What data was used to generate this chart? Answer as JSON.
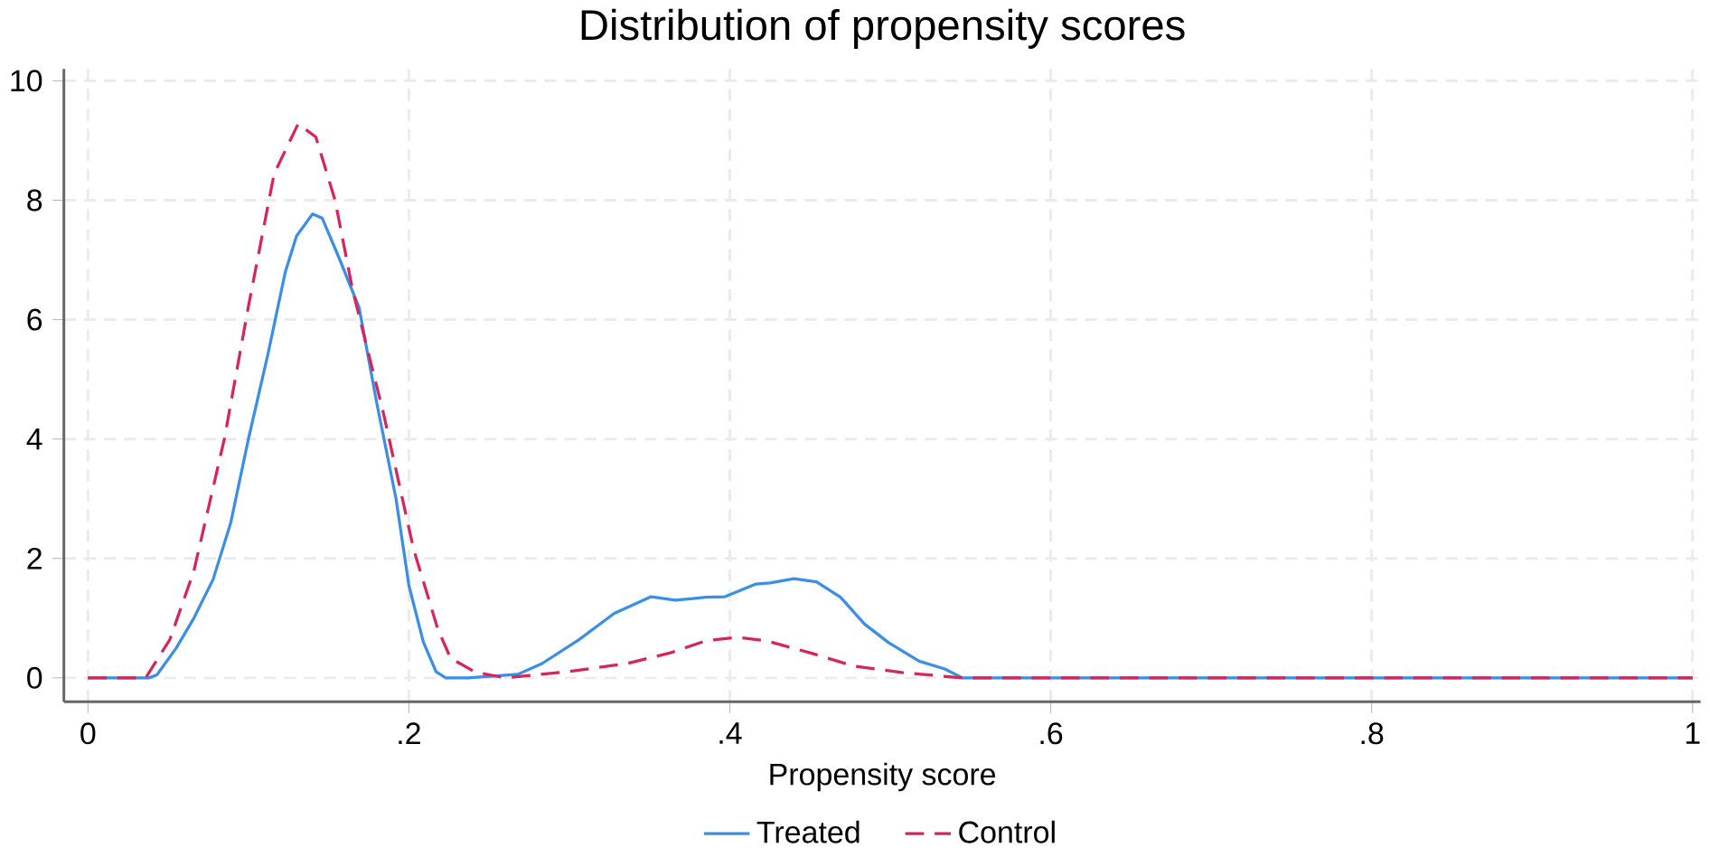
{
  "chart_data": {
    "type": "line",
    "title": "Distribution of propensity scores",
    "xlabel": "Propensity score",
    "xlim": [
      -0.015,
      1.005
    ],
    "ylim": [
      -0.4,
      10.2
    ],
    "xticks": [
      {
        "value": 0,
        "label": "0"
      },
      {
        "value": 0.2,
        "label": ".2"
      },
      {
        "value": 0.4,
        "label": ".4"
      },
      {
        "value": 0.6,
        "label": ".6"
      },
      {
        "value": 0.8,
        "label": ".8"
      },
      {
        "value": 1,
        "label": "1"
      }
    ],
    "yticks": [
      0,
      2,
      4,
      6,
      8,
      10
    ],
    "grid": true,
    "legend": "bottom",
    "series": [
      {
        "name": "Treated",
        "color": "#3a8ee6",
        "line_style": "solid",
        "x": [
          0,
          0.038,
          0.043,
          0.055,
          0.066,
          0.078,
          0.089,
          0.1,
          0.112,
          0.123,
          0.13,
          0.14,
          0.146,
          0.157,
          0.169,
          0.18,
          0.192,
          0.2,
          0.209,
          0.217,
          0.223,
          0.237,
          0.268,
          0.283,
          0.306,
          0.328,
          0.351,
          0.366,
          0.385,
          0.397,
          0.416,
          0.425,
          0.44,
          0.454,
          0.469,
          0.484,
          0.499,
          0.518,
          0.534,
          0.545,
          1
        ],
        "values": [
          0,
          0,
          0.05,
          0.5,
          1.0,
          1.65,
          2.6,
          4.0,
          5.4,
          6.8,
          7.4,
          7.77,
          7.7,
          7.0,
          6.2,
          4.6,
          3.0,
          1.55,
          0.6,
          0.1,
          0,
          0,
          0.06,
          0.24,
          0.64,
          1.08,
          1.36,
          1.3,
          1.35,
          1.36,
          1.57,
          1.59,
          1.66,
          1.61,
          1.35,
          0.9,
          0.59,
          0.28,
          0.15,
          0,
          0
        ]
      },
      {
        "name": "Control",
        "color": "#d5265b",
        "line_style": "dashed",
        "x": [
          0,
          0.036,
          0.051,
          0.066,
          0.085,
          0.1,
          0.116,
          0.131,
          0.142,
          0.154,
          0.165,
          0.184,
          0.203,
          0.218,
          0.226,
          0.241,
          0.26,
          0.298,
          0.336,
          0.363,
          0.385,
          0.404,
          0.423,
          0.45,
          0.477,
          0.507,
          0.545,
          1
        ],
        "values": [
          0,
          0,
          0.64,
          1.79,
          4.0,
          6.22,
          8.44,
          9.28,
          9.06,
          8.0,
          6.49,
          4.45,
          2.15,
          0.82,
          0.33,
          0.1,
          0,
          0.1,
          0.24,
          0.42,
          0.62,
          0.68,
          0.62,
          0.42,
          0.2,
          0.09,
          0,
          0
        ]
      }
    ]
  }
}
